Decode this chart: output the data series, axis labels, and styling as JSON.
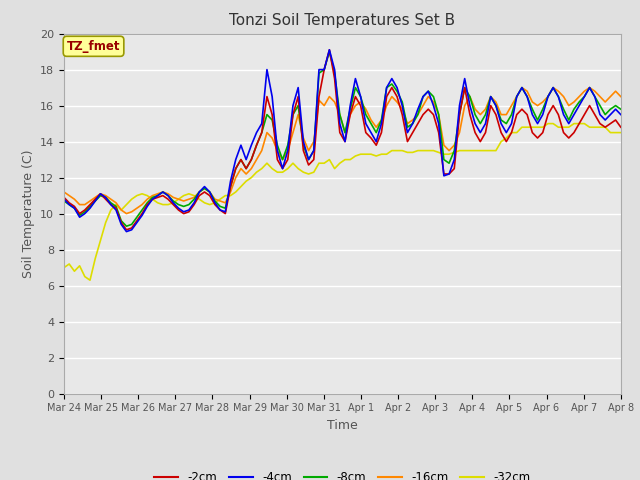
{
  "title": "Tonzi Soil Temperatures Set B",
  "xlabel": "Time",
  "ylabel": "Soil Temperature (C)",
  "ylim": [
    0,
    20
  ],
  "bg_color": "#e0e0e0",
  "plot_bg_color": "#e8e8e8",
  "grid_color": "#ffffff",
  "annotation_text": "TZ_fmet",
  "annotation_bg": "#ffff99",
  "annotation_border": "#999900",
  "annotation_color": "#990000",
  "tick_label_color": "#555555",
  "series_colors": {
    "-2cm": "#cc0000",
    "-4cm": "#0000ee",
    "-8cm": "#00aa00",
    "-16cm": "#ff8800",
    "-32cm": "#dddd00"
  },
  "xtick_labels": [
    "Mar 24",
    "Mar 25",
    "Mar 26",
    "Mar 27",
    "Mar 28",
    "Mar 29",
    "Mar 30",
    "Mar 31",
    "Apr 1",
    "Apr 2",
    "Apr 3",
    "Apr 4",
    "Apr 5",
    "Apr 6",
    "Apr 7",
    "Apr 8"
  ],
  "ytick_positions": [
    0,
    2,
    4,
    6,
    8,
    10,
    12,
    14,
    16,
    18,
    20
  ],
  "data": {
    "-2cm": [
      10.9,
      10.6,
      10.4,
      10.0,
      10.2,
      10.5,
      10.8,
      11.1,
      10.8,
      10.5,
      10.3,
      9.5,
      9.1,
      9.2,
      9.6,
      10.0,
      10.5,
      10.8,
      10.9,
      11.0,
      10.8,
      10.5,
      10.2,
      10.0,
      10.1,
      10.5,
      11.0,
      11.2,
      11.0,
      10.5,
      10.2,
      10.0,
      11.5,
      12.5,
      13.0,
      12.5,
      13.0,
      13.8,
      14.5,
      16.5,
      15.5,
      13.0,
      12.5,
      13.0,
      15.5,
      16.5,
      13.5,
      12.7,
      13.0,
      16.5,
      18.0,
      19.1,
      17.5,
      14.5,
      14.0,
      15.5,
      16.5,
      16.0,
      14.5,
      14.2,
      13.8,
      14.5,
      16.5,
      17.0,
      16.5,
      15.5,
      14.0,
      14.5,
      15.0,
      15.5,
      15.8,
      15.5,
      14.5,
      12.2,
      12.2,
      12.5,
      15.5,
      17.0,
      15.5,
      14.5,
      14.0,
      14.5,
      16.0,
      15.5,
      14.5,
      14.0,
      14.5,
      15.5,
      15.8,
      15.5,
      14.5,
      14.2,
      14.5,
      15.5,
      16.0,
      15.5,
      14.5,
      14.2,
      14.5,
      15.0,
      15.5,
      16.0,
      15.5,
      15.0,
      14.8,
      15.0,
      15.2,
      14.8
    ],
    "-4cm": [
      10.8,
      10.5,
      10.3,
      9.8,
      10.0,
      10.3,
      10.7,
      11.1,
      10.9,
      10.5,
      10.2,
      9.4,
      9.0,
      9.1,
      9.5,
      9.9,
      10.4,
      10.8,
      11.0,
      11.2,
      11.0,
      10.6,
      10.3,
      10.1,
      10.2,
      10.6,
      11.2,
      11.5,
      11.2,
      10.6,
      10.2,
      10.1,
      11.8,
      13.0,
      13.8,
      13.0,
      13.8,
      14.5,
      15.0,
      18.0,
      16.5,
      13.5,
      12.5,
      13.5,
      16.0,
      17.0,
      14.0,
      13.0,
      13.5,
      18.0,
      18.0,
      19.1,
      18.0,
      15.0,
      14.0,
      16.0,
      17.5,
      16.5,
      15.0,
      14.5,
      14.0,
      15.0,
      17.0,
      17.5,
      17.0,
      16.0,
      14.5,
      15.0,
      15.8,
      16.5,
      16.8,
      16.0,
      15.0,
      12.1,
      12.2,
      13.0,
      16.0,
      17.5,
      16.0,
      15.0,
      14.5,
      15.0,
      16.5,
      16.0,
      15.0,
      14.5,
      15.0,
      16.5,
      17.0,
      16.5,
      15.5,
      15.0,
      15.5,
      16.5,
      17.0,
      16.5,
      15.5,
      15.0,
      15.5,
      16.0,
      16.5,
      17.0,
      16.5,
      15.5,
      15.2,
      15.5,
      15.8,
      15.5
    ],
    "-8cm": [
      10.7,
      10.5,
      10.3,
      9.9,
      10.1,
      10.4,
      10.7,
      11.0,
      10.9,
      10.6,
      10.4,
      9.6,
      9.3,
      9.4,
      9.8,
      10.2,
      10.6,
      10.9,
      11.0,
      11.2,
      11.0,
      10.7,
      10.5,
      10.4,
      10.5,
      10.8,
      11.2,
      11.4,
      11.2,
      10.7,
      10.4,
      10.3,
      11.5,
      12.5,
      13.0,
      12.5,
      13.0,
      13.8,
      14.5,
      15.5,
      15.2,
      13.8,
      13.0,
      13.8,
      15.5,
      16.0,
      13.8,
      13.0,
      13.5,
      17.8,
      18.0,
      19.0,
      17.8,
      15.5,
      14.5,
      15.8,
      17.0,
      16.5,
      15.5,
      15.0,
      14.5,
      15.2,
      17.0,
      17.2,
      16.8,
      16.2,
      14.8,
      15.0,
      15.5,
      16.5,
      16.8,
      16.5,
      15.5,
      13.0,
      12.8,
      13.5,
      15.5,
      17.0,
      16.5,
      15.5,
      15.0,
      15.5,
      16.5,
      16.0,
      15.2,
      15.0,
      15.5,
      16.5,
      17.0,
      16.5,
      15.8,
      15.2,
      15.8,
      16.5,
      17.0,
      16.5,
      15.8,
      15.2,
      15.8,
      16.2,
      16.5,
      17.0,
      16.5,
      16.0,
      15.5,
      15.8,
      16.0,
      15.8
    ],
    "-16cm": [
      11.2,
      11.0,
      10.8,
      10.5,
      10.5,
      10.7,
      10.9,
      11.1,
      11.0,
      10.8,
      10.6,
      10.2,
      10.0,
      10.1,
      10.3,
      10.5,
      10.8,
      11.0,
      11.1,
      11.2,
      11.1,
      10.9,
      10.8,
      10.7,
      10.8,
      10.9,
      11.2,
      11.4,
      11.2,
      10.8,
      10.7,
      10.6,
      11.2,
      12.0,
      12.5,
      12.2,
      12.5,
      13.0,
      13.5,
      14.5,
      14.2,
      13.5,
      13.0,
      13.5,
      14.5,
      15.5,
      14.2,
      13.5,
      14.0,
      16.3,
      16.0,
      16.5,
      16.2,
      15.5,
      14.5,
      15.5,
      16.0,
      16.2,
      15.8,
      15.2,
      14.8,
      15.2,
      16.0,
      16.5,
      16.2,
      15.8,
      15.0,
      15.2,
      15.5,
      16.0,
      16.5,
      16.2,
      15.5,
      13.8,
      13.5,
      13.8,
      14.5,
      16.0,
      16.5,
      15.8,
      15.5,
      15.8,
      16.5,
      16.2,
      15.5,
      15.5,
      16.0,
      16.5,
      17.0,
      16.8,
      16.2,
      16.0,
      16.2,
      16.5,
      17.0,
      16.8,
      16.5,
      16.0,
      16.2,
      16.5,
      16.8,
      17.0,
      16.8,
      16.5,
      16.2,
      16.5,
      16.8,
      16.5
    ],
    "-32cm": [
      7.0,
      7.2,
      6.8,
      7.1,
      6.5,
      6.3,
      7.5,
      8.5,
      9.5,
      10.2,
      10.5,
      10.2,
      10.5,
      10.8,
      11.0,
      11.1,
      11.0,
      10.8,
      10.6,
      10.5,
      10.5,
      10.6,
      10.8,
      11.0,
      11.1,
      11.0,
      10.8,
      10.6,
      10.5,
      10.6,
      10.8,
      11.0,
      11.0,
      11.2,
      11.5,
      11.8,
      12.0,
      12.3,
      12.5,
      12.8,
      12.5,
      12.3,
      12.3,
      12.5,
      12.8,
      12.5,
      12.3,
      12.2,
      12.3,
      12.8,
      12.8,
      13.0,
      12.5,
      12.8,
      13.0,
      13.0,
      13.2,
      13.3,
      13.3,
      13.3,
      13.2,
      13.3,
      13.3,
      13.5,
      13.5,
      13.5,
      13.4,
      13.4,
      13.5,
      13.5,
      13.5,
      13.5,
      13.4,
      13.3,
      13.3,
      13.4,
      13.5,
      13.5,
      13.5,
      13.5,
      13.5,
      13.5,
      13.5,
      13.5,
      14.0,
      14.2,
      14.5,
      14.5,
      14.8,
      14.8,
      14.8,
      14.8,
      14.8,
      15.0,
      15.0,
      14.8,
      14.8,
      14.8,
      15.0,
      15.0,
      15.0,
      14.8,
      14.8,
      14.8,
      14.8,
      14.5,
      14.5,
      14.5
    ]
  }
}
